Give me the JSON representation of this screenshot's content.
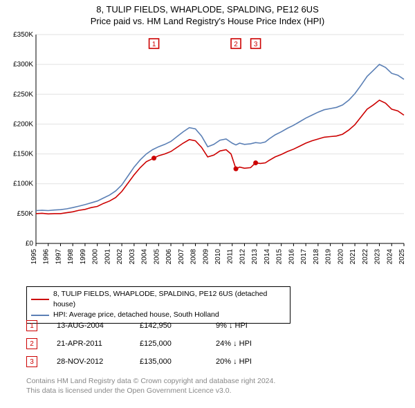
{
  "title_line1": "8, TULIP FIELDS, WHAPLODE, SPALDING, PE12 6US",
  "title_line2": "Price paid vs. HM Land Registry's House Price Index (HPI)",
  "chart": {
    "type": "line",
    "background_color": "#ffffff",
    "grid_color": "#e2e2e2",
    "axis_color": "#000000",
    "y": {
      "min": 0,
      "max": 350000,
      "tick_step": 50000,
      "tick_prefix": "£",
      "tick_suffix": "K",
      "tick_labels": [
        "£0",
        "£50K",
        "£100K",
        "£150K",
        "£200K",
        "£250K",
        "£300K",
        "£350K"
      ]
    },
    "x": {
      "min": 1995,
      "max": 2025,
      "tick_step": 1,
      "tick_labels": [
        "1995",
        "1996",
        "1997",
        "1998",
        "1999",
        "2000",
        "2001",
        "2002",
        "2003",
        "2004",
        "2005",
        "2006",
        "2007",
        "2008",
        "2009",
        "2010",
        "2011",
        "2012",
        "2013",
        "2014",
        "2015",
        "2016",
        "2017",
        "2018",
        "2019",
        "2020",
        "2021",
        "2022",
        "2023",
        "2024",
        "2025"
      ]
    },
    "series": [
      {
        "id": "property",
        "label": "8, TULIP FIELDS, WHAPLODE, SPALDING, PE12 6US (detached house)",
        "color": "#cc0000",
        "line_width": 1.6,
        "data": [
          [
            1995.0,
            50000
          ],
          [
            1995.5,
            50500
          ],
          [
            1996.0,
            49500
          ],
          [
            1996.5,
            50000
          ],
          [
            1997.0,
            50000
          ],
          [
            1997.5,
            51500
          ],
          [
            1998.0,
            53000
          ],
          [
            1998.5,
            55500
          ],
          [
            1999.0,
            57000
          ],
          [
            1999.5,
            60000
          ],
          [
            2000.0,
            62000
          ],
          [
            2000.5,
            67000
          ],
          [
            2001.0,
            71000
          ],
          [
            2001.5,
            77000
          ],
          [
            2002.0,
            87000
          ],
          [
            2002.5,
            101000
          ],
          [
            2003.0,
            115000
          ],
          [
            2003.5,
            127000
          ],
          [
            2004.0,
            137000
          ],
          [
            2004.6,
            142950
          ],
          [
            2005.0,
            147000
          ],
          [
            2005.5,
            150000
          ],
          [
            2006.0,
            154000
          ],
          [
            2006.5,
            161000
          ],
          [
            2007.0,
            168000
          ],
          [
            2007.5,
            174000
          ],
          [
            2008.0,
            172000
          ],
          [
            2008.5,
            161000
          ],
          [
            2009.0,
            145000
          ],
          [
            2009.5,
            148000
          ],
          [
            2010.0,
            155000
          ],
          [
            2010.5,
            157000
          ],
          [
            2010.9,
            150000
          ],
          [
            2011.3,
            125000
          ],
          [
            2011.6,
            128000
          ],
          [
            2012.0,
            126000
          ],
          [
            2012.5,
            127000
          ],
          [
            2012.9,
            135000
          ],
          [
            2013.3,
            134000
          ],
          [
            2013.7,
            135000
          ],
          [
            2014.0,
            139000
          ],
          [
            2014.5,
            145000
          ],
          [
            2015.0,
            149000
          ],
          [
            2015.5,
            154000
          ],
          [
            2016.0,
            158000
          ],
          [
            2016.5,
            163000
          ],
          [
            2017.0,
            168000
          ],
          [
            2017.5,
            172000
          ],
          [
            2018.0,
            175000
          ],
          [
            2018.5,
            178000
          ],
          [
            2019.0,
            179000
          ],
          [
            2019.5,
            180000
          ],
          [
            2020.0,
            183000
          ],
          [
            2020.5,
            190000
          ],
          [
            2021.0,
            199000
          ],
          [
            2021.5,
            212000
          ],
          [
            2022.0,
            225000
          ],
          [
            2022.5,
            232000
          ],
          [
            2023.0,
            240000
          ],
          [
            2023.5,
            235000
          ],
          [
            2024.0,
            225000
          ],
          [
            2024.5,
            222000
          ],
          [
            2025.0,
            215000
          ]
        ]
      },
      {
        "id": "hpi",
        "label": "HPI: Average price, detached house, South Holland",
        "color": "#5a7fb5",
        "line_width": 1.4,
        "data": [
          [
            1995.0,
            55000
          ],
          [
            1995.5,
            55500
          ],
          [
            1996.0,
            55000
          ],
          [
            1996.5,
            56000
          ],
          [
            1997.0,
            56500
          ],
          [
            1997.5,
            58000
          ],
          [
            1998.0,
            60000
          ],
          [
            1998.5,
            62500
          ],
          [
            1999.0,
            65000
          ],
          [
            1999.5,
            68000
          ],
          [
            2000.0,
            71000
          ],
          [
            2000.5,
            76000
          ],
          [
            2001.0,
            81000
          ],
          [
            2001.5,
            88000
          ],
          [
            2002.0,
            98000
          ],
          [
            2002.5,
            113000
          ],
          [
            2003.0,
            128000
          ],
          [
            2003.5,
            140000
          ],
          [
            2004.0,
            150000
          ],
          [
            2004.5,
            157000
          ],
          [
            2005.0,
            162000
          ],
          [
            2005.5,
            166000
          ],
          [
            2006.0,
            171000
          ],
          [
            2006.5,
            179000
          ],
          [
            2007.0,
            187000
          ],
          [
            2007.5,
            194000
          ],
          [
            2008.0,
            192000
          ],
          [
            2008.5,
            180000
          ],
          [
            2009.0,
            162000
          ],
          [
            2009.5,
            166000
          ],
          [
            2010.0,
            173000
          ],
          [
            2010.5,
            175000
          ],
          [
            2011.0,
            168000
          ],
          [
            2011.3,
            165000
          ],
          [
            2011.6,
            168000
          ],
          [
            2012.0,
            166000
          ],
          [
            2012.5,
            167000
          ],
          [
            2012.9,
            169000
          ],
          [
            2013.3,
            168000
          ],
          [
            2013.7,
            170000
          ],
          [
            2014.0,
            175000
          ],
          [
            2014.5,
            182000
          ],
          [
            2015.0,
            187000
          ],
          [
            2015.5,
            193000
          ],
          [
            2016.0,
            198000
          ],
          [
            2016.5,
            204000
          ],
          [
            2017.0,
            210000
          ],
          [
            2017.5,
            215000
          ],
          [
            2018.0,
            220000
          ],
          [
            2018.5,
            224000
          ],
          [
            2019.0,
            226000
          ],
          [
            2019.5,
            228000
          ],
          [
            2020.0,
            232000
          ],
          [
            2020.5,
            240000
          ],
          [
            2021.0,
            251000
          ],
          [
            2021.5,
            265000
          ],
          [
            2022.0,
            280000
          ],
          [
            2022.5,
            290000
          ],
          [
            2023.0,
            300000
          ],
          [
            2023.5,
            295000
          ],
          [
            2024.0,
            285000
          ],
          [
            2024.5,
            282000
          ],
          [
            2025.0,
            275000
          ]
        ]
      }
    ],
    "sales": [
      {
        "n": "1",
        "year": 2004.62,
        "price": 142950
      },
      {
        "n": "2",
        "year": 2011.3,
        "price": 125000
      },
      {
        "n": "3",
        "year": 2012.91,
        "price": 135000
      }
    ]
  },
  "legend": {
    "rows": [
      {
        "color": "#cc0000",
        "text": "8, TULIP FIELDS, WHAPLODE, SPALDING, PE12 6US (detached house)"
      },
      {
        "color": "#5a7fb5",
        "text": "HPI: Average price, detached house, South Holland"
      }
    ]
  },
  "sales_table": {
    "rows": [
      {
        "n": "1",
        "date": "13-AUG-2004",
        "price": "£142,950",
        "vs": "9% ↓ HPI"
      },
      {
        "n": "2",
        "date": "21-APR-2011",
        "price": "£125,000",
        "vs": "24% ↓ HPI"
      },
      {
        "n": "3",
        "date": "28-NOV-2012",
        "price": "£135,000",
        "vs": "20% ↓ HPI"
      }
    ]
  },
  "footer": {
    "line1": "Contains HM Land Registry data © Crown copyright and database right 2024.",
    "line2": "This data is licensed under the Open Government Licence v3.0."
  }
}
